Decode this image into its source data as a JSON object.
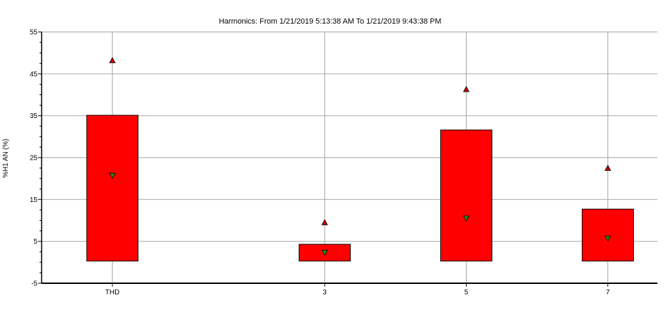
{
  "chart_data": {
    "type": "box",
    "title": "Harmonics: From 1/21/2019 5:13:38 AM To 1/21/2019 9:43:38 PM",
    "ylabel": "%H1 AN (%)",
    "xlabel": "",
    "ylim": [
      -5,
      55
    ],
    "yticks": [
      "-5",
      "5",
      "15",
      "25",
      "35",
      "45",
      "55"
    ],
    "grid": true,
    "colors": {
      "box": "#ff0000",
      "max_marker": "#cc0000",
      "min_marker": "#2e8b00",
      "grid": "#b0b0b0",
      "axis": "#000000"
    },
    "categories": [
      {
        "label": "THD",
        "x": 0
      },
      {
        "label": "3",
        "x": 3
      },
      {
        "label": "5",
        "x": 5
      },
      {
        "label": "7",
        "x": 7
      }
    ],
    "series": [
      {
        "category": "THD",
        "box_low": 0.3,
        "box_high": 35.1,
        "max": 48.2,
        "min": 20.7
      },
      {
        "category": "3",
        "box_low": 0.3,
        "box_high": 4.3,
        "max": 9.5,
        "min": 2.3
      },
      {
        "category": "5",
        "box_low": 0.3,
        "box_high": 31.6,
        "max": 41.3,
        "min": 10.5
      },
      {
        "category": "7",
        "box_low": 0.3,
        "box_high": 12.7,
        "max": 22.5,
        "min": 5.7
      }
    ]
  }
}
